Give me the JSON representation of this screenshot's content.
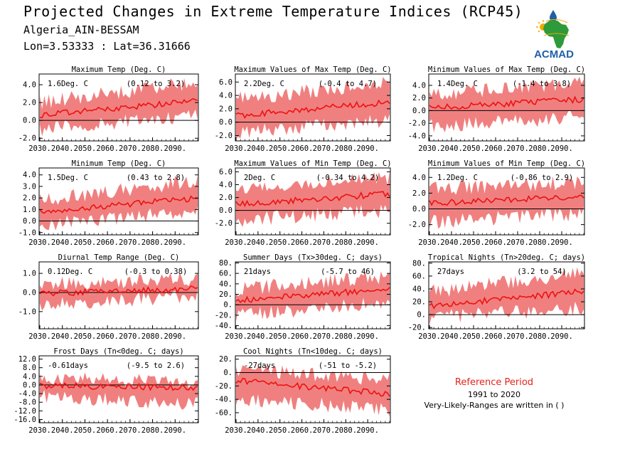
{
  "header": {
    "title": "Projected Changes in Extreme Temperature Indices (RCP45)",
    "station": "Algeria_AIN-BESSAM",
    "coords": "Lon=3.53333 : Lat=36.31666"
  },
  "logo": {
    "text": "ACMAD",
    "colors": {
      "africa": "#2e9a3a",
      "text": "#1f5fa8",
      "sun": "#f2a900",
      "drop": "#1f5fa8"
    }
  },
  "reference": {
    "title": "Reference Period",
    "years": "1991 to 2020",
    "note": "Very-Likely-Ranges are written in ( )"
  },
  "colors": {
    "band": "#f08080",
    "line": "#ee1111",
    "zero": "#000000"
  },
  "chart_data": [
    {
      "type": "line",
      "title": "Maximum Temp (Deg. C)",
      "value": "1.6Deg. C",
      "range": "(0.12 to 3.2)",
      "xticks": [
        "2030.",
        "2040.",
        "2050.",
        "2060.",
        "2070.",
        "2080.",
        "2090."
      ],
      "yticks": [
        "-2.0",
        "0.0",
        "2.0",
        "4.0"
      ],
      "ytick_values": [
        -2,
        0,
        2,
        4
      ],
      "ylim": [
        -2.3,
        5.2
      ],
      "mean_start": 0.6,
      "mean_end": 2.2,
      "low_start": -1.0,
      "low_end": 0.6,
      "high_start": 2.0,
      "high_end": 4.3
    },
    {
      "type": "line",
      "title": "Maximum Values of Max Temp (Deg. C)",
      "value": "2.2Deg. C",
      "range": "(-0.4 to 4.7)",
      "xticks": [
        "2030.",
        "2040.",
        "2050.",
        "2060.",
        "2070.",
        "2080.",
        "2090."
      ],
      "yticks": [
        "-2.0",
        "0.0",
        "2.0",
        "4.0",
        "6.0"
      ],
      "ytick_values": [
        -2,
        0,
        2,
        4,
        6
      ],
      "ylim": [
        -2.8,
        7.2
      ],
      "mean_start": 1.0,
      "mean_end": 3.0,
      "low_start": -1.5,
      "low_end": 0.3,
      "high_start": 3.5,
      "high_end": 5.8
    },
    {
      "type": "line",
      "title": "Minimum Values of Max Temp (Deg. C)",
      "value": "1.4Deg. C",
      "range": "(-1.4 to 3.8)",
      "xticks": [
        "2030.",
        "2040.",
        "2050.",
        "2060.",
        "2070.",
        "2080.",
        "2090."
      ],
      "yticks": [
        "-4.0",
        "-2.0",
        "0.0",
        "2.0",
        "4.0"
      ],
      "ytick_values": [
        -4,
        -2,
        0,
        2,
        4
      ],
      "ylim": [
        -4.8,
        5.8
      ],
      "mean_start": 0.4,
      "mean_end": 1.8,
      "low_start": -2.5,
      "low_end": -1.0,
      "high_start": 2.6,
      "high_end": 4.3
    },
    {
      "type": "line",
      "title": "Minimum Temp (Deg. C)",
      "value": "1.5Deg. C",
      "range": "(0.43 to 2.8)",
      "xticks": [
        "2030.",
        "2040.",
        "2050.",
        "2060.",
        "2070.",
        "2080.",
        "2090."
      ],
      "yticks": [
        "-1.0",
        "0.0",
        "1.0",
        "2.0",
        "3.0",
        "4.0"
      ],
      "ytick_values": [
        -1,
        0,
        1,
        2,
        3,
        4
      ],
      "ylim": [
        -1.2,
        4.6
      ],
      "mean_start": 0.8,
      "mean_end": 2.0,
      "low_start": -0.3,
      "low_end": 0.9,
      "high_start": 1.8,
      "high_end": 3.5
    },
    {
      "type": "line",
      "title": "Maximum Values of Min Temp (Deg. C)",
      "value": "2Deg. C",
      "range": "(-0.34 to 4.2)",
      "xticks": [
        "2030.",
        "2040.",
        "2050.",
        "2060.",
        "2070.",
        "2080.",
        "2090."
      ],
      "yticks": [
        "-2.0",
        "0.0",
        "2.0",
        "4.0",
        "6.0"
      ],
      "ytick_values": [
        -2,
        0,
        2,
        4,
        6
      ],
      "ylim": [
        -3.8,
        6.6
      ],
      "mean_start": 0.9,
      "mean_end": 2.6,
      "low_start": -1.5,
      "low_end": 0.0,
      "high_start": 3.2,
      "high_end": 5.0
    },
    {
      "type": "line",
      "title": "Minimum Values of Min Temp (Deg. C)",
      "value": "1.2Deg. C",
      "range": "(-0.86 to 2.9)",
      "xticks": [
        "2030.",
        "2040.",
        "2050.",
        "2060.",
        "2070.",
        "2080.",
        "2090."
      ],
      "yticks": [
        "-2.0",
        "0.0",
        "2.0",
        "4.0"
      ],
      "ytick_values": [
        -2,
        0,
        2,
        4
      ],
      "ylim": [
        -3.3,
        5.2
      ],
      "mean_start": 0.7,
      "mean_end": 1.6,
      "low_start": -1.7,
      "low_end": -0.6,
      "high_start": 2.6,
      "high_end": 3.4
    },
    {
      "type": "line",
      "title": "Diurnal Temp Range (Deg. C)",
      "value": "0.12Deg. C",
      "range": "(-0.3 to 0.38)",
      "xticks": [
        "2030.",
        "2040.",
        "2050.",
        "2060.",
        "2070.",
        "2080.",
        "2090."
      ],
      "yticks": [
        "-1.0",
        "0.0",
        "1.0"
      ],
      "ytick_values": [
        -1,
        0,
        1
      ],
      "ylim": [
        -1.9,
        1.6
      ],
      "mean_start": -0.05,
      "mean_end": 0.2,
      "low_start": -0.6,
      "low_end": -0.2,
      "high_start": 0.4,
      "high_end": 0.7
    },
    {
      "type": "line",
      "title": "Summer Days (Tx>30deg. C; days)",
      "value": "21days",
      "range": "(-5.7 to 46)",
      "xticks": [
        "2030.",
        "2040.",
        "2050.",
        "2060.",
        "2070.",
        "2080.",
        "2090."
      ],
      "yticks": [
        "-40.",
        "-20.",
        "0.",
        "20.",
        "40.",
        "60.",
        "80."
      ],
      "ytick_values": [
        -40,
        -20,
        0,
        20,
        40,
        60,
        80
      ],
      "ylim": [
        -46,
        82
      ],
      "mean_start": 8,
      "mean_end": 30,
      "low_start": -20,
      "low_end": 5,
      "high_start": 30,
      "high_end": 55
    },
    {
      "type": "line",
      "title": "Tropical Nights (Tn>20deg. C; days)",
      "value": "27days",
      "range": "(3.2 to 54)",
      "xticks": [
        "2030.",
        "2040.",
        "2050.",
        "2060.",
        "2070.",
        "2080.",
        "2090."
      ],
      "yticks": [
        "-20.",
        "0.",
        "20.",
        "40.",
        "60.",
        "80."
      ],
      "ytick_values": [
        -20,
        0,
        20,
        40,
        60,
        80
      ],
      "ylim": [
        -22,
        82
      ],
      "mean_start": 14,
      "mean_end": 36,
      "low_start": -5,
      "low_end": 10,
      "high_start": 35,
      "high_end": 65
    },
    {
      "type": "line",
      "title": "Frost Days (Tn<0deg. C; days)",
      "value": "-0.61days",
      "range": "(-9.5 to 2.6)",
      "xticks": [
        "2030.",
        "2040.",
        "2050.",
        "2060.",
        "2070.",
        "2080.",
        "2090."
      ],
      "yticks": [
        "-16.0",
        "-12.0",
        "-8.0",
        "-4.0",
        "0.0",
        "4.0",
        "8.0",
        "12.0"
      ],
      "ytick_values": [
        -16,
        -12,
        -8,
        -4,
        0,
        4,
        8,
        12
      ],
      "ylim": [
        -17.5,
        13.5
      ],
      "mean_start": -0.3,
      "mean_end": -1.2,
      "low_start": -5,
      "low_end": -9,
      "high_start": 3,
      "high_end": 1
    },
    {
      "type": "line",
      "title": "Cool Nights (Tn<10deg. C; days)",
      "value": "-27days",
      "range": "(-51 to -5.2)",
      "xticks": [
        "2030.",
        "2040.",
        "2050.",
        "2060.",
        "2070.",
        "2080.",
        "2090."
      ],
      "yticks": [
        "-60.",
        "-40.",
        "-20.",
        "0.",
        "20."
      ],
      "ytick_values": [
        -60,
        -40,
        -20,
        0,
        20
      ],
      "ylim": [
        -75,
        25
      ],
      "mean_start": -12,
      "mean_end": -32,
      "low_start": -40,
      "low_end": -55,
      "high_start": 5,
      "high_end": -10
    }
  ]
}
